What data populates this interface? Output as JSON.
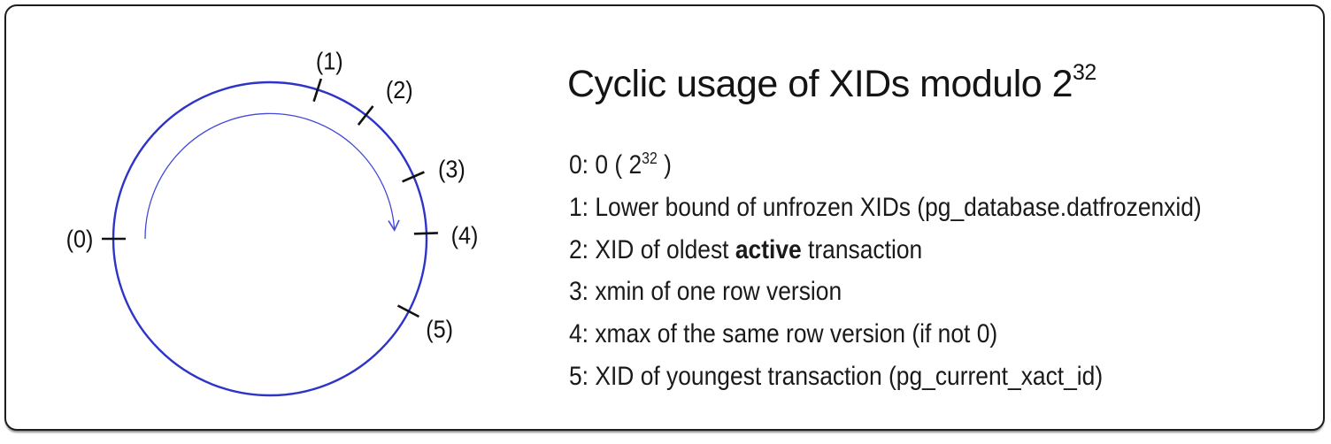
{
  "title": {
    "text": "Cyclic usage of XIDs modulo 2",
    "sup": "32"
  },
  "legend": {
    "items": [
      {
        "pre": "0: 0 ( 2",
        "sup": "32",
        "post": " )"
      },
      {
        "pre": "1: Lower bound of unfrozen XIDs (pg_database.datfrozenxid)"
      },
      {
        "pre": "2: XID of oldest ",
        "bold": "active",
        "post": " transaction"
      },
      {
        "pre": "3: xmin of one row version"
      },
      {
        "pre": "4: xmax of the same row version (if not 0)"
      },
      {
        "pre": "5: XID of youngest transaction (pg_current_xact_id)"
      }
    ]
  },
  "diagram": {
    "ticks": [
      {
        "label": "(0)",
        "tick_angle": 180,
        "label_angle": 180,
        "label_radius": 215
      },
      {
        "label": "(1)",
        "tick_angle": 72.3,
        "label_angle": 71.5,
        "label_radius": 212
      },
      {
        "label": "(2)",
        "tick_angle": 52.2,
        "label_angle": 49,
        "label_radius": 223
      },
      {
        "label": "(3)",
        "tick_angle": 23.4,
        "label_angle": 21,
        "label_radius": 220
      },
      {
        "label": "(4)",
        "tick_angle": 2,
        "label_angle": 1,
        "label_radius": 220
      },
      {
        "label": "(5)",
        "tick_angle": -27.6,
        "label_angle": -28,
        "label_radius": 217
      }
    ],
    "colors": {
      "circle": "#2e34c8",
      "arrow": "#4348d8",
      "tick": "#111111",
      "label": "#111111"
    }
  }
}
